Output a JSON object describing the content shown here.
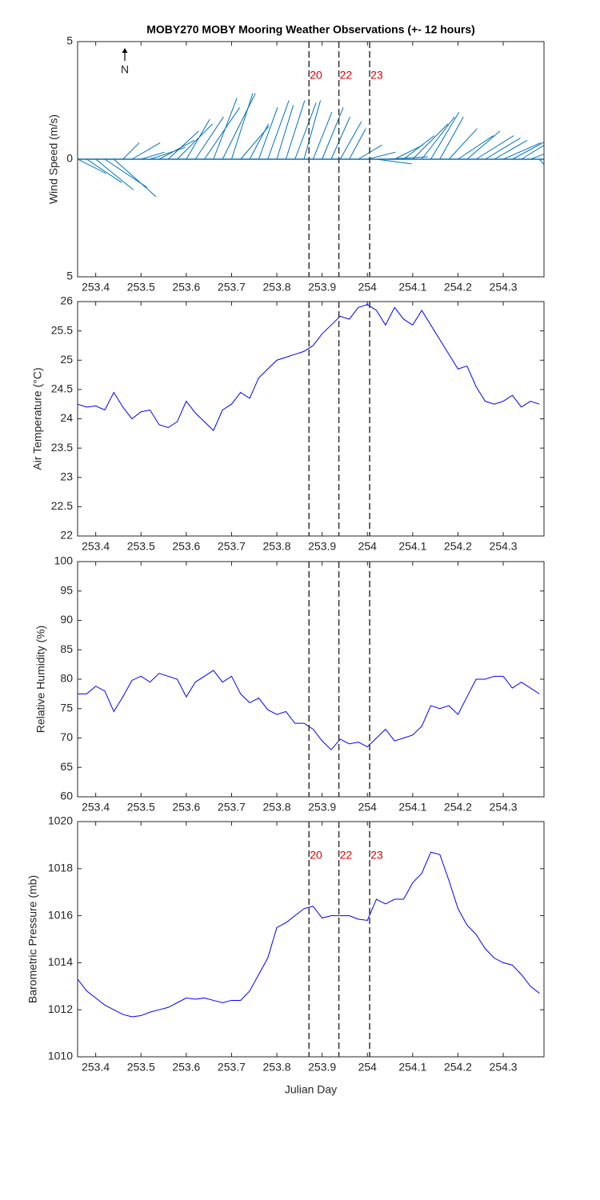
{
  "chart_data": [
    {
      "type": "stick",
      "title": "MOBY270 MOBY Mooring Weather Observations (+- 12 hours)",
      "ylabel": "Wind Speed (m/s)",
      "north_label": "N",
      "color": "#0072bd",
      "xlim": [
        253.36,
        254.39
      ],
      "xticks": [
        253.4,
        253.5,
        253.6,
        253.7,
        253.8,
        253.9,
        254,
        254.1,
        254.2,
        254.3
      ],
      "ylim": [
        -5,
        5
      ],
      "yticks": [
        {
          "value": -5,
          "label": "5"
        },
        0,
        5
      ],
      "vlines": [
        253.871,
        253.937,
        254.005
      ],
      "vline_labels": [
        "20",
        "22",
        "23"
      ],
      "x": [
        253.36,
        253.38,
        253.4,
        253.42,
        253.44,
        253.46,
        253.48,
        253.5,
        253.52,
        253.54,
        253.56,
        253.58,
        253.6,
        253.62,
        253.64,
        253.66,
        253.68,
        253.7,
        253.72,
        253.74,
        253.76,
        253.78,
        253.8,
        253.82,
        253.84,
        253.86,
        253.88,
        253.9,
        253.92,
        253.94,
        253.96,
        253.98,
        254.0,
        254.02,
        254.04,
        254.06,
        254.08,
        254.1,
        254.12,
        254.14,
        254.16,
        254.18,
        254.2,
        254.22,
        254.24,
        254.26,
        254.28,
        254.3,
        254.32,
        254.34,
        254.36,
        254.38
      ],
      "u": [
        1.2,
        1.5,
        1.6,
        1.8,
        1.8,
        0.7,
        1.2,
        1.0,
        1.5,
        1.5,
        1.3,
        1.5,
        1.0,
        1.2,
        1.5,
        1.0,
        1.4,
        0.9,
        1.2,
        0.8,
        0.8,
        0.9,
        0.7,
        0.8,
        0.9,
        0.7,
        0.8,
        0.9,
        0.8,
        0.9,
        0.7,
        1.0,
        1.2,
        1.5,
        1.8,
        1.2,
        1.3,
        1.5,
        1.4,
        1.2,
        1.0,
        1.2,
        1.5,
        1.4,
        1.6,
        1.5,
        1.4,
        1.6,
        1.5,
        1.3,
        0.8,
        0.6
      ],
      "v": [
        -0.6,
        -1.0,
        -1.3,
        -1.2,
        -1.6,
        0.7,
        0.7,
        0.3,
        0.5,
        0.8,
        1.2,
        1.5,
        1.7,
        1.8,
        2.2,
        2.6,
        2.8,
        2.8,
        1.4,
        1.5,
        2.2,
        2.5,
        2.3,
        2.5,
        2.4,
        2.5,
        2.0,
        2.2,
        1.8,
        1.6,
        1.3,
        0.6,
        0.3,
        -0.2,
        0.1,
        0.6,
        1.0,
        1.5,
        1.8,
        2.0,
        1.8,
        1.3,
        1.0,
        1.2,
        1.0,
        0.9,
        0.8,
        0.7,
        0.8,
        0.8,
        0.3,
        -0.7
      ]
    },
    {
      "type": "line",
      "ylabel": "Air Temperature (°C)",
      "color": "#0000ff",
      "xlim": [
        253.36,
        254.39
      ],
      "xticks": [
        253.4,
        253.5,
        253.6,
        253.7,
        253.8,
        253.9,
        254,
        254.1,
        254.2,
        254.3
      ],
      "ylim": [
        22,
        26
      ],
      "yticks": [
        22,
        22.5,
        23,
        23.5,
        24,
        24.5,
        25,
        25.5,
        26
      ],
      "vlines": [
        253.871,
        253.937,
        254.005
      ],
      "x": [
        253.36,
        253.38,
        253.4,
        253.42,
        253.44,
        253.46,
        253.48,
        253.5,
        253.52,
        253.54,
        253.56,
        253.58,
        253.6,
        253.62,
        253.64,
        253.66,
        253.68,
        253.7,
        253.72,
        253.74,
        253.76,
        253.78,
        253.8,
        253.82,
        253.84,
        253.86,
        253.88,
        253.9,
        253.92,
        253.94,
        253.96,
        253.98,
        254.0,
        254.02,
        254.04,
        254.06,
        254.08,
        254.1,
        254.12,
        254.14,
        254.16,
        254.18,
        254.2,
        254.22,
        254.24,
        254.26,
        254.28,
        254.3,
        254.32,
        254.34,
        254.36,
        254.38
      ],
      "values": [
        24.25,
        24.2,
        24.22,
        24.15,
        24.45,
        24.2,
        24.0,
        24.12,
        24.15,
        23.9,
        23.85,
        23.95,
        24.3,
        24.1,
        23.95,
        23.8,
        24.15,
        24.25,
        24.45,
        24.35,
        24.7,
        24.85,
        25.0,
        25.05,
        25.1,
        25.15,
        25.25,
        25.45,
        25.6,
        25.75,
        25.7,
        25.9,
        25.95,
        25.85,
        25.6,
        25.9,
        25.7,
        25.6,
        25.85,
        25.6,
        25.35,
        25.1,
        24.85,
        24.9,
        24.55,
        24.3,
        24.25,
        24.3,
        24.4,
        24.2,
        24.3,
        24.25
      ]
    },
    {
      "type": "line",
      "ylabel": "Relative Humidity (%)",
      "color": "#0000ff",
      "xlim": [
        253.36,
        254.39
      ],
      "xticks": [
        253.4,
        253.5,
        253.6,
        253.7,
        253.8,
        253.9,
        254,
        254.1,
        254.2,
        254.3
      ],
      "ylim": [
        60,
        100
      ],
      "yticks": [
        60,
        65,
        70,
        75,
        80,
        85,
        90,
        95,
        100
      ],
      "vlines": [
        253.871,
        253.937,
        254.005
      ],
      "x": [
        253.36,
        253.38,
        253.4,
        253.42,
        253.44,
        253.46,
        253.48,
        253.5,
        253.52,
        253.54,
        253.56,
        253.58,
        253.6,
        253.62,
        253.64,
        253.66,
        253.68,
        253.7,
        253.72,
        253.74,
        253.76,
        253.78,
        253.8,
        253.82,
        253.84,
        253.86,
        253.88,
        253.9,
        253.92,
        253.94,
        253.96,
        253.98,
        254.0,
        254.02,
        254.04,
        254.06,
        254.08,
        254.1,
        254.12,
        254.14,
        254.16,
        254.18,
        254.2,
        254.22,
        254.24,
        254.26,
        254.28,
        254.3,
        254.32,
        254.34,
        254.36,
        254.38
      ],
      "values": [
        77.5,
        77.5,
        78.8,
        78,
        74.5,
        77,
        79.8,
        80.5,
        79.5,
        81,
        80.5,
        80,
        77,
        79.5,
        80.5,
        81.5,
        79.5,
        80.5,
        77.5,
        76,
        76.8,
        74.8,
        74,
        74.5,
        72.5,
        72.5,
        71.5,
        69.5,
        68,
        69.8,
        69,
        69.3,
        68.5,
        70,
        71.5,
        69.5,
        70,
        70.5,
        72,
        75.5,
        75,
        75.5,
        74,
        77,
        80,
        80,
        80.5,
        80.5,
        78.5,
        79.5,
        78.5,
        77.5
      ]
    },
    {
      "type": "line",
      "ylabel": "Barometric Pressure (mb)",
      "xlabel": "Julian Day",
      "color": "#0000ff",
      "xlim": [
        253.36,
        254.39
      ],
      "xticks": [
        253.4,
        253.5,
        253.6,
        253.7,
        253.8,
        253.9,
        254,
        254.1,
        254.2,
        254.3
      ],
      "ylim": [
        1010,
        1020
      ],
      "yticks": [
        1010,
        1012,
        1014,
        1016,
        1018,
        1020
      ],
      "vlines": [
        253.871,
        253.937,
        254.005
      ],
      "vline_labels": [
        "20",
        "22",
        "23"
      ],
      "x": [
        253.36,
        253.38,
        253.4,
        253.42,
        253.44,
        253.46,
        253.48,
        253.5,
        253.52,
        253.54,
        253.56,
        253.58,
        253.6,
        253.62,
        253.64,
        253.66,
        253.68,
        253.7,
        253.72,
        253.74,
        253.76,
        253.78,
        253.8,
        253.82,
        253.84,
        253.86,
        253.88,
        253.9,
        253.92,
        253.94,
        253.96,
        253.98,
        254.0,
        254.02,
        254.04,
        254.06,
        254.08,
        254.1,
        254.12,
        254.14,
        254.16,
        254.18,
        254.2,
        254.22,
        254.24,
        254.26,
        254.28,
        254.3,
        254.32,
        254.34,
        254.36,
        254.38
      ],
      "values": [
        1013.3,
        1012.8,
        1012.5,
        1012.2,
        1012.0,
        1011.8,
        1011.7,
        1011.75,
        1011.9,
        1012.0,
        1012.1,
        1012.3,
        1012.5,
        1012.45,
        1012.5,
        1012.4,
        1012.3,
        1012.4,
        1012.4,
        1012.8,
        1013.5,
        1014.2,
        1015.5,
        1015.7,
        1016.0,
        1016.3,
        1016.4,
        1015.9,
        1016.0,
        1016.0,
        1016.0,
        1015.85,
        1015.8,
        1016.7,
        1016.5,
        1016.7,
        1016.7,
        1017.4,
        1017.8,
        1018.7,
        1018.6,
        1017.5,
        1016.3,
        1015.6,
        1015.2,
        1014.6,
        1014.2,
        1014.0,
        1013.9,
        1013.5,
        1013.0,
        1012.7
      ]
    }
  ]
}
